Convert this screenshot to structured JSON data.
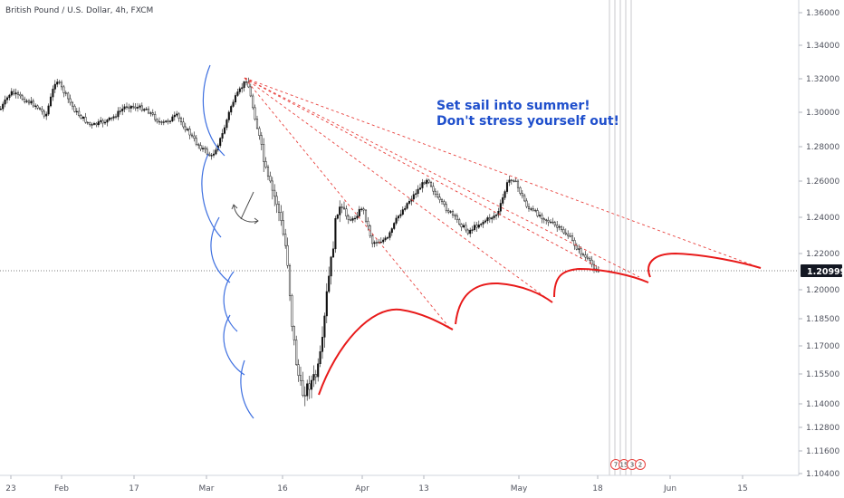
{
  "symbol_title": "British Pound / U.S. Dollar, 4h, FXCM",
  "annotation": {
    "line1": "Set sail into summer!",
    "line2": "Don't stress yourself out!"
  },
  "last_price": "1.20999",
  "event_badges": [
    "7",
    "15",
    "3",
    "2"
  ],
  "colors": {
    "background": "#ffffff",
    "candle": "#111111",
    "trend_line": "#e8413d",
    "red_arc": "#e81a1a",
    "blue_arc": "#3d6fe0",
    "note_text": "#1f4fcc",
    "price_tag": "#131722",
    "axis_text": "#50535e"
  },
  "chart_data": {
    "type": "candlestick",
    "title": "British Pound / U.S. Dollar, 4h, FXCM",
    "x_tick_labels": [
      "23",
      "Feb",
      "17",
      "Mar",
      "16",
      "Apr",
      "13",
      "May",
      "18",
      "Jun",
      "15"
    ],
    "y_tick_labels": [
      "1.36000",
      "1.34000",
      "1.32000",
      "1.30000",
      "1.28000",
      "1.26000",
      "1.24000",
      "1.22000",
      "1.20999",
      "1.20000",
      "1.18500",
      "1.17000",
      "1.15500",
      "1.14000",
      "1.12800",
      "1.11600",
      "1.10400"
    ],
    "ylim": [
      1.104,
      1.36
    ],
    "last_price": 1.20999,
    "price_path": [
      [
        "2020-01-20",
        1.302
      ],
      [
        "2020-01-22",
        1.312
      ],
      [
        "2020-01-27",
        1.304
      ],
      [
        "2020-01-29",
        1.298
      ],
      [
        "2020-01-31",
        1.32
      ],
      [
        "2020-02-04",
        1.3
      ],
      [
        "2020-02-07",
        1.292
      ],
      [
        "2020-02-11",
        1.296
      ],
      [
        "2020-02-14",
        1.304
      ],
      [
        "2020-02-18",
        1.302
      ],
      [
        "2020-02-21",
        1.293
      ],
      [
        "2020-02-24",
        1.298
      ],
      [
        "2020-02-28",
        1.282
      ],
      [
        "2020-03-02",
        1.274
      ],
      [
        "2020-03-04",
        1.286
      ],
      [
        "2020-03-06",
        1.305
      ],
      [
        "2020-03-09",
        1.32
      ],
      [
        "2020-03-11",
        1.292
      ],
      [
        "2020-03-13",
        1.262
      ],
      [
        "2020-03-15",
        1.248
      ],
      [
        "2020-03-17",
        1.22
      ],
      [
        "2020-03-18",
        1.182
      ],
      [
        "2020-03-19",
        1.158
      ],
      [
        "2020-03-20",
        1.145
      ],
      [
        "2020-03-23",
        1.155
      ],
      [
        "2020-03-24",
        1.17
      ],
      [
        "2020-03-25",
        1.2
      ],
      [
        "2020-03-26",
        1.22
      ],
      [
        "2020-03-27",
        1.245
      ],
      [
        "2020-03-30",
        1.238
      ],
      [
        "2020-04-01",
        1.246
      ],
      [
        "2020-04-03",
        1.226
      ],
      [
        "2020-04-06",
        1.228
      ],
      [
        "2020-04-08",
        1.24
      ],
      [
        "2020-04-10",
        1.248
      ],
      [
        "2020-04-14",
        1.262
      ],
      [
        "2020-04-16",
        1.25
      ],
      [
        "2020-04-20",
        1.238
      ],
      [
        "2020-04-22",
        1.232
      ],
      [
        "2020-04-24",
        1.236
      ],
      [
        "2020-04-28",
        1.242
      ],
      [
        "2020-04-30",
        1.26
      ],
      [
        "2020-05-01",
        1.262
      ],
      [
        "2020-05-04",
        1.245
      ],
      [
        "2020-05-07",
        1.24
      ],
      [
        "2020-05-09",
        1.236
      ],
      [
        "2020-05-12",
        1.23
      ],
      [
        "2020-05-14",
        1.222
      ],
      [
        "2020-05-16",
        1.216
      ],
      [
        "2020-05-18",
        1.21
      ]
    ],
    "trend_lines": [
      {
        "from": [
          "2020-03-09",
          1.32
        ],
        "to": [
          "2020-06-20",
          1.21
        ]
      },
      {
        "from": [
          "2020-03-09",
          1.32
        ],
        "to": [
          "2020-05-28",
          1.206
        ]
      },
      {
        "from": [
          "2020-03-09",
          1.32
        ],
        "to": [
          "2020-05-18",
          1.212
        ]
      },
      {
        "from": [
          "2020-03-09",
          1.32
        ],
        "to": [
          "2020-05-14",
          1.19
        ]
      },
      {
        "from": [
          "2020-03-09",
          1.32
        ],
        "to": [
          "2020-04-22",
          1.18
        ]
      }
    ],
    "grid": false,
    "legend": "none"
  }
}
